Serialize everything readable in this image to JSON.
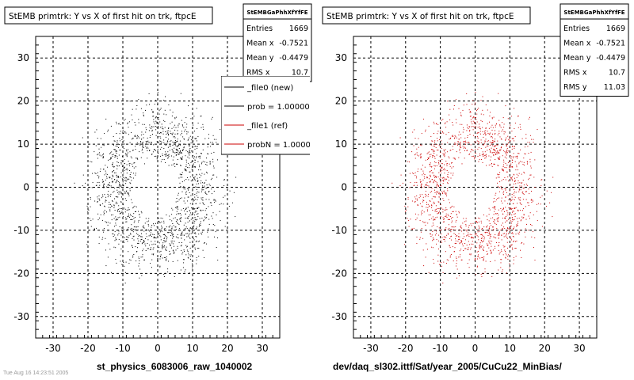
{
  "chart_data": [
    {
      "type": "scatter",
      "title": "StEMB primtrk: Y vs X of first hit on trk, ftpcE",
      "xlim": [
        -35,
        35
      ],
      "ylim": [
        -35,
        35
      ],
      "xticks": [
        -30,
        -20,
        -10,
        0,
        10,
        20,
        30
      ],
      "yticks": [
        -30,
        -20,
        -10,
        0,
        10,
        20,
        30
      ],
      "grid": true,
      "caption": "st_physics_6083006_raw_1040002",
      "color": "#000000",
      "distribution": "ring of points between radius ~7 and ~24, denser near radius ~10-15",
      "stats": {
        "name": "StEMBGaPhhXfYfFE",
        "rows": [
          {
            "label": "Entries",
            "value": "1669"
          },
          {
            "label": "Mean x",
            "value": "-0.7521"
          },
          {
            "label": "Mean y",
            "value": "-0.4479"
          },
          {
            "label": "RMS x",
            "value": "10.7"
          }
        ]
      },
      "legend": {
        "placement": "top-right",
        "entries": [
          {
            "label": "_file0 (new)",
            "color": "#000000"
          },
          {
            "label": "prob = 1.000000",
            "color": "#000000"
          },
          {
            "label": "_file1 (ref)",
            "color": "#cc0000"
          },
          {
            "label": "probN = 1.000000",
            "color": "#cc0000"
          }
        ]
      }
    },
    {
      "type": "scatter",
      "title": "StEMB primtrk: Y vs X of first hit on trk, ftpcE",
      "xlim": [
        -35,
        35
      ],
      "ylim": [
        -35,
        35
      ],
      "xticks": [
        -30,
        -20,
        -10,
        0,
        10,
        20,
        30
      ],
      "yticks": [
        -30,
        -20,
        -10,
        0,
        10,
        20,
        30
      ],
      "grid": true,
      "caption": "dev/daq_sl302.ittf/Sat/year_2005/CuCu22_MinBias/",
      "color": "#cc0000",
      "distribution": "ring of points between radius ~7 and ~24, denser near radius ~10-15",
      "stats": {
        "name": "StEMBGaPhhXfYfFE",
        "rows": [
          {
            "label": "Entries",
            "value": "1669"
          },
          {
            "label": "Mean x",
            "value": "-0.7521"
          },
          {
            "label": "Mean y",
            "value": "-0.4479"
          },
          {
            "label": "RMS x",
            "value": "10.7"
          },
          {
            "label": "RMS y",
            "value": "11.03"
          }
        ]
      }
    }
  ],
  "footer": {
    "stamp": "Tue Aug 16 14:23:51 2005"
  }
}
